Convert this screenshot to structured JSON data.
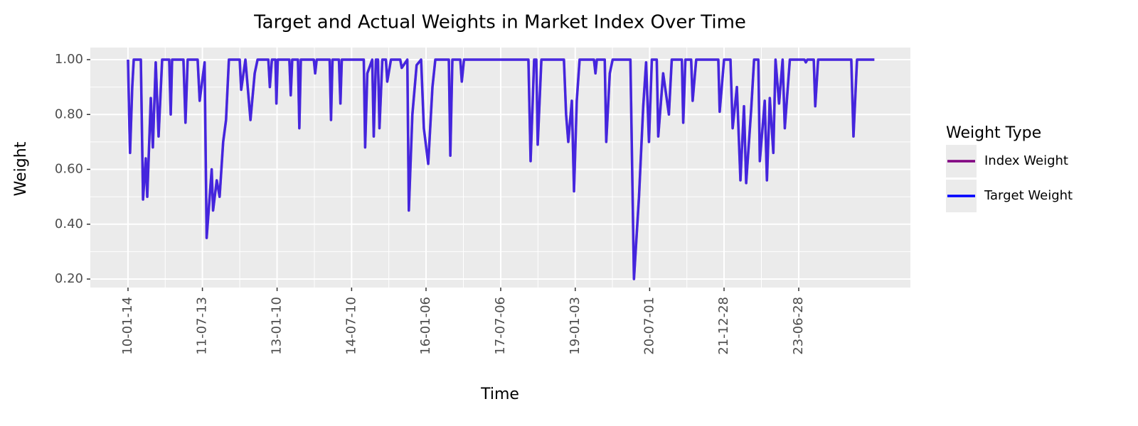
{
  "chart_data": {
    "type": "line",
    "title": "Target and Actual Weights in Market Index Over Time",
    "x_label": "Time",
    "y_label": "Weight",
    "legend_title": "Weight Type",
    "x": [
      "10-01-14",
      "10-01-24",
      "10-01-29",
      "10-02-14",
      "10-02-25",
      "10-04-18",
      "10-05-04",
      "10-05-24",
      "10-06-04",
      "10-06-30",
      "10-07-15",
      "10-08-05",
      "10-08-26",
      "10-09-21",
      "10-11-12",
      "10-11-23",
      "10-12-03",
      "11-02-24",
      "11-03-11",
      "11-03-27",
      "11-06-08",
      "11-06-23",
      "11-07-29",
      "11-08-13",
      "11-09-19",
      "11-09-29",
      "11-10-26",
      "11-11-16",
      "11-12-12",
      "12-01-02",
      "12-01-23",
      "12-04-11",
      "12-04-22",
      "12-05-23",
      "12-06-29",
      "12-07-30",
      "12-08-20",
      "12-11-07",
      "12-11-18",
      "12-12-03",
      "12-12-29",
      "13-01-05",
      "13-01-15",
      "13-04-10",
      "13-04-20",
      "13-05-01",
      "13-06-12",
      "13-06-22",
      "13-07-03",
      "13-10-06",
      "13-10-16",
      "13-10-27",
      "14-01-30",
      "14-02-09",
      "14-02-20",
      "14-04-08",
      "14-04-19",
      "14-04-29",
      "14-10-07",
      "14-10-17",
      "14-11-02",
      "14-12-08",
      "14-12-19",
      "15-01-04",
      "15-01-19",
      "15-01-30",
      "15-02-20",
      "15-03-18",
      "15-03-28",
      "15-04-24",
      "15-07-01",
      "15-07-12",
      "15-08-22",
      "15-09-02",
      "15-09-28",
      "15-10-29",
      "15-12-01",
      "15-12-21",
      "16-01-22",
      "16-02-22",
      "16-03-14",
      "16-06-21",
      "16-07-02",
      "16-07-17",
      "16-09-13",
      "16-09-24",
      "16-10-10",
      "18-01-25",
      "18-02-10",
      "18-03-08",
      "18-03-24",
      "18-04-03",
      "18-04-30",
      "18-10-12",
      "18-10-28",
      "18-11-13",
      "18-12-09",
      "18-12-25",
      "19-01-14",
      "19-02-04",
      "19-05-20",
      "19-05-31",
      "19-06-10",
      "19-08-07",
      "19-08-18",
      "19-09-13",
      "19-10-04",
      "20-02-11",
      "20-03-08",
      "20-04-14",
      "20-05-15",
      "20-06-05",
      "20-06-26",
      "20-07-17",
      "20-08-22",
      "20-09-02",
      "20-10-08",
      "20-11-19",
      "20-12-10",
      "21-02-22",
      "21-03-04",
      "21-03-20",
      "21-05-01",
      "21-05-12",
      "21-06-07",
      "21-11-16",
      "21-11-26",
      "21-12-28",
      "22-02-13",
      "22-03-01",
      "22-04-01",
      "22-04-27",
      "22-05-23",
      "22-06-08",
      "22-07-15",
      "22-08-05",
      "22-09-05",
      "22-09-16",
      "22-10-22",
      "22-11-07",
      "22-11-28",
      "22-12-24",
      "23-01-09",
      "23-02-04",
      "23-03-02",
      "23-03-18",
      "23-04-24",
      "23-08-09",
      "23-08-19",
      "23-08-30",
      "23-10-16",
      "23-10-27",
      "23-11-17",
      "24-07-17",
      "24-08-02",
      "24-08-28",
      "25-01-02"
    ],
    "series": [
      {
        "name": "Index Weight",
        "color": "#800080",
        "values": [
          1.0,
          0.76,
          0.66,
          0.9,
          1.0,
          1.0,
          0.49,
          0.64,
          0.5,
          0.86,
          0.68,
          0.99,
          0.72,
          1.0,
          1.0,
          0.8,
          1.0,
          1.0,
          0.77,
          1.0,
          1.0,
          0.85,
          0.99,
          0.35,
          0.6,
          0.45,
          0.56,
          0.5,
          0.7,
          0.78,
          1.0,
          1.0,
          0.89,
          1.0,
          0.78,
          0.95,
          1.0,
          1.0,
          0.9,
          1.0,
          1.0,
          0.84,
          1.0,
          1.0,
          0.87,
          1.0,
          1.0,
          0.75,
          1.0,
          1.0,
          0.95,
          1.0,
          1.0,
          0.78,
          1.0,
          1.0,
          0.84,
          1.0,
          1.0,
          0.68,
          0.95,
          1.0,
          0.72,
          1.0,
          1.0,
          0.75,
          1.0,
          1.0,
          0.92,
          1.0,
          1.0,
          0.97,
          1.0,
          0.45,
          0.8,
          0.98,
          1.0,
          0.75,
          0.62,
          0.9,
          1.0,
          1.0,
          0.65,
          1.0,
          1.0,
          0.92,
          1.0,
          1.0,
          0.63,
          1.0,
          1.0,
          0.69,
          1.0,
          1.0,
          0.8,
          0.7,
          0.85,
          0.52,
          0.85,
          1.0,
          1.0,
          0.95,
          1.0,
          1.0,
          0.7,
          0.95,
          1.0,
          1.0,
          0.2,
          0.5,
          0.83,
          0.99,
          0.7,
          1.0,
          1.0,
          0.72,
          0.95,
          0.8,
          1.0,
          1.0,
          0.77,
          1.0,
          1.0,
          0.85,
          1.0,
          1.0,
          0.81,
          1.0,
          1.0,
          0.75,
          0.9,
          0.56,
          0.83,
          0.55,
          0.82,
          1.0,
          1.0,
          0.63,
          0.85,
          0.56,
          0.86,
          0.66,
          1.0,
          0.84,
          1.0,
          0.75,
          1.0,
          1.0,
          0.99,
          1.0,
          1.0,
          0.83,
          1.0,
          1.0,
          0.72,
          1.0,
          1.0
        ]
      },
      {
        "name": "Target Weight",
        "color": "#0000ff",
        "values": [
          1.0,
          0.76,
          0.66,
          0.9,
          1.0,
          1.0,
          0.49,
          0.64,
          0.5,
          0.86,
          0.68,
          0.99,
          0.72,
          1.0,
          1.0,
          0.8,
          1.0,
          1.0,
          0.77,
          1.0,
          1.0,
          0.85,
          0.99,
          0.35,
          0.6,
          0.45,
          0.56,
          0.5,
          0.7,
          0.78,
          1.0,
          1.0,
          0.89,
          1.0,
          0.78,
          0.95,
          1.0,
          1.0,
          0.9,
          1.0,
          1.0,
          0.84,
          1.0,
          1.0,
          0.87,
          1.0,
          1.0,
          0.75,
          1.0,
          1.0,
          0.95,
          1.0,
          1.0,
          0.78,
          1.0,
          1.0,
          0.84,
          1.0,
          1.0,
          0.68,
          0.95,
          1.0,
          0.72,
          1.0,
          1.0,
          0.75,
          1.0,
          1.0,
          0.92,
          1.0,
          1.0,
          0.97,
          1.0,
          0.45,
          0.8,
          0.98,
          1.0,
          0.75,
          0.62,
          0.9,
          1.0,
          1.0,
          0.65,
          1.0,
          1.0,
          0.92,
          1.0,
          1.0,
          0.63,
          1.0,
          1.0,
          0.69,
          1.0,
          1.0,
          0.8,
          0.7,
          0.85,
          0.52,
          0.85,
          1.0,
          1.0,
          0.95,
          1.0,
          1.0,
          0.7,
          0.95,
          1.0,
          1.0,
          0.2,
          0.5,
          0.83,
          0.99,
          0.7,
          1.0,
          1.0,
          0.72,
          0.95,
          0.8,
          1.0,
          1.0,
          0.77,
          1.0,
          1.0,
          0.85,
          1.0,
          1.0,
          0.81,
          1.0,
          1.0,
          0.75,
          0.9,
          0.56,
          0.83,
          0.55,
          0.82,
          1.0,
          1.0,
          0.63,
          0.85,
          0.56,
          0.86,
          0.66,
          1.0,
          0.84,
          1.0,
          0.75,
          1.0,
          1.0,
          0.99,
          1.0,
          1.0,
          0.83,
          1.0,
          1.0,
          0.72,
          1.0,
          1.0
        ]
      }
    ],
    "xlim": [
      "09-04-13",
      "25-09-23"
    ],
    "xticks": [
      "10-01-14",
      "11-07-13",
      "13-01-10",
      "14-07-10",
      "16-01-06",
      "17-07-06",
      "19-01-03",
      "20-07-01",
      "21-12-28",
      "23-06-28"
    ],
    "ylim": [
      0.169,
      1.044
    ],
    "yticks": [
      {
        "value": 0.2,
        "label": "0.20"
      },
      {
        "value": 0.4,
        "label": "0.40"
      },
      {
        "value": 0.6,
        "label": "0.60"
      },
      {
        "value": 0.8,
        "label": "0.80"
      },
      {
        "value": 1.0,
        "label": "1.00"
      }
    ],
    "grid": true,
    "legend_position": "right"
  }
}
